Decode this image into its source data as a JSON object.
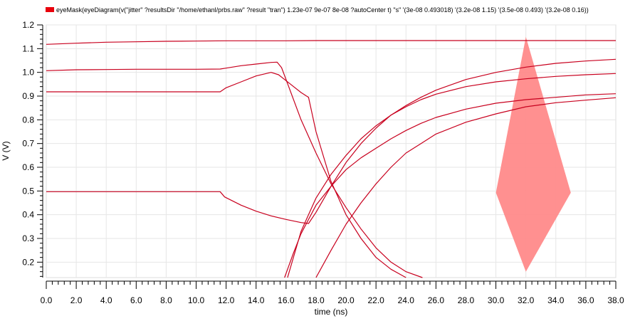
{
  "chart_data": {
    "type": "line",
    "xlabel": "time (ns)",
    "ylabel": "V (V)",
    "xlim": [
      0,
      38
    ],
    "ylim": [
      0.135,
      1.2
    ],
    "x_ticks": [
      "0.0",
      "2.0",
      "4.0",
      "6.0",
      "8.0",
      "10.0",
      "12.0",
      "14.0",
      "16.0",
      "18.0",
      "20.0",
      "22.0",
      "24.0",
      "26.0",
      "28.0",
      "30.0",
      "32.0",
      "34.0",
      "36.0",
      "38.0"
    ],
    "y_ticks": [
      "0.2",
      "0.3",
      "0.4",
      "0.5",
      "0.6",
      "0.7",
      "0.8",
      "0.9",
      "1.0",
      "1.1",
      "1.2"
    ],
    "grid": true,
    "legend": {
      "position": "top-left",
      "entries": [
        {
          "label": "eyeMask(eyeDiagram(v(\"jitter\" ?resultsDir \"/home/ethanl/prbs.raw\" ?result \"tran\") 1.23e-07 9e-07 8e-08 ?autoCenter t) \"s\" '(3e-08 0.493018) '(3.2e-08 1.15) '(3.5e-08 0.493) '(3.2e-08 0.16))",
          "color": "#e8000b"
        }
      ]
    },
    "colors": {
      "trace": "#c8001e",
      "mask_fill": "#ff8a8a"
    },
    "series": [
      {
        "x": [
          0,
          2,
          4,
          6,
          8,
          10,
          12,
          14,
          16,
          18,
          20,
          22,
          24,
          26,
          28,
          30,
          32,
          34,
          36,
          38
        ],
        "y": [
          1.118,
          1.123,
          1.127,
          1.129,
          1.131,
          1.132,
          1.133,
          1.133,
          1.133,
          1.134,
          1.134,
          1.134,
          1.134,
          1.134,
          1.134,
          1.134,
          1.134,
          1.134,
          1.134,
          1.134
        ]
      },
      {
        "x": [
          0,
          2,
          4,
          6,
          8,
          10,
          11.6,
          12,
          13,
          14,
          15,
          15.4,
          15.7,
          16,
          17,
          18,
          19,
          20,
          21,
          22,
          23,
          24,
          25.1
        ],
        "y": [
          1.007,
          1.011,
          1.012,
          1.013,
          1.013,
          1.013,
          1.014,
          1.018,
          1.028,
          1.035,
          1.042,
          1.043,
          1.02,
          0.97,
          0.8,
          0.66,
          0.53,
          0.43,
          0.34,
          0.26,
          0.2,
          0.16,
          0.135
        ]
      },
      {
        "x": [
          0,
          2,
          4,
          6,
          8,
          10,
          11.6,
          12,
          13,
          14,
          15,
          15.5,
          16,
          17,
          17.5,
          18,
          19,
          20,
          21,
          22,
          23,
          24
        ],
        "y": [
          0.918,
          0.918,
          0.918,
          0.918,
          0.918,
          0.918,
          0.918,
          0.935,
          0.96,
          0.985,
          1.0,
          0.99,
          0.965,
          0.915,
          0.895,
          0.75,
          0.54,
          0.4,
          0.3,
          0.22,
          0.17,
          0.135
        ]
      },
      {
        "x": [
          0,
          2,
          4,
          6,
          8,
          10,
          11.6,
          11.9,
          13,
          14,
          15,
          16,
          17,
          17.5,
          18,
          19,
          20,
          21,
          22,
          23,
          24,
          25,
          26,
          28,
          30,
          32,
          34,
          36,
          38
        ],
        "y": [
          0.497,
          0.497,
          0.497,
          0.497,
          0.497,
          0.497,
          0.497,
          0.475,
          0.44,
          0.415,
          0.395,
          0.38,
          0.367,
          0.363,
          0.41,
          0.52,
          0.62,
          0.7,
          0.765,
          0.82,
          0.86,
          0.895,
          0.925,
          0.97,
          1.0,
          1.022,
          1.038,
          1.048,
          1.055
        ]
      },
      {
        "x": [
          16.1,
          17,
          18,
          19,
          20,
          21,
          22,
          23,
          24,
          25,
          26,
          28,
          30,
          32,
          34,
          36,
          38
        ],
        "y": [
          0.135,
          0.33,
          0.47,
          0.57,
          0.65,
          0.72,
          0.775,
          0.82,
          0.855,
          0.885,
          0.908,
          0.94,
          0.96,
          0.973,
          0.983,
          0.99,
          0.995
        ]
      },
      {
        "x": [
          15.9,
          16.5,
          17,
          18,
          19,
          20,
          21,
          22,
          23,
          24,
          25,
          26,
          28,
          30,
          32,
          34,
          36,
          38
        ],
        "y": [
          0.135,
          0.24,
          0.32,
          0.44,
          0.52,
          0.59,
          0.64,
          0.68,
          0.72,
          0.755,
          0.785,
          0.81,
          0.845,
          0.87,
          0.885,
          0.895,
          0.905,
          0.91
        ]
      },
      {
        "x": [
          18,
          19,
          20,
          21,
          22,
          23,
          24,
          25,
          26,
          28,
          30,
          32,
          34,
          36,
          38
        ],
        "y": [
          0.135,
          0.25,
          0.36,
          0.45,
          0.53,
          0.6,
          0.66,
          0.7,
          0.74,
          0.79,
          0.825,
          0.855,
          0.872,
          0.883,
          0.893
        ]
      }
    ],
    "mask": [
      [
        30,
        0.493018
      ],
      [
        32,
        1.15
      ],
      [
        35,
        0.493
      ],
      [
        32,
        0.16
      ]
    ]
  }
}
